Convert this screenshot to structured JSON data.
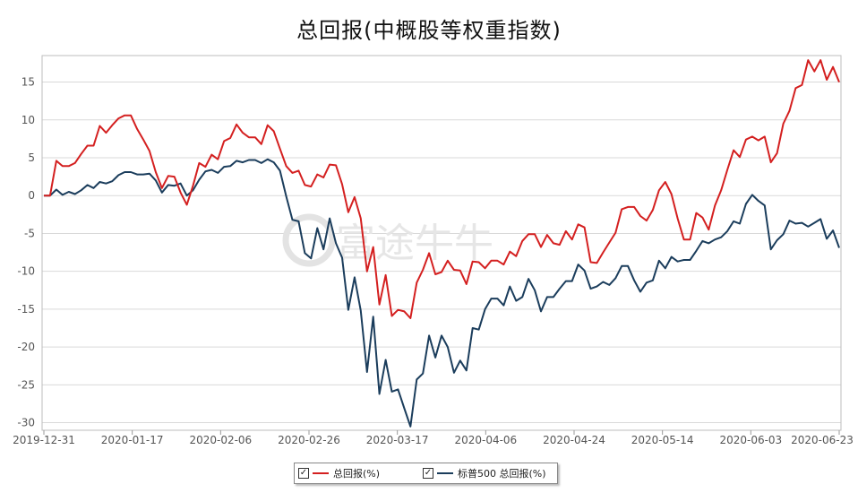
{
  "chart_data": {
    "type": "line",
    "title": "总回报(中概股等权重指数)",
    "xlabel": "",
    "ylabel": "",
    "ylim": [
      -31,
      18.5
    ],
    "yticks": [
      15,
      10,
      5,
      0,
      -5,
      -10,
      -15,
      -20,
      -25,
      -30
    ],
    "xticks": [
      "2019-12-31",
      "2020-01-17",
      "2020-02-06",
      "2020-02-26",
      "2020-03-17",
      "2020-04-06",
      "2020-04-24",
      "2020-05-14",
      "2020-06-03",
      "2020-06-23"
    ],
    "watermark": "富途牛牛",
    "grid": true,
    "legend_position": "bottom-center",
    "series": [
      {
        "name": "总回报(%)",
        "color": "#d42020",
        "values": [
          0,
          0,
          4.6,
          3.9,
          3.9,
          4.3,
          5.5,
          6.6,
          6.6,
          9.2,
          8.3,
          9.3,
          10.2,
          10.6,
          10.6,
          8.8,
          7.4,
          5.9,
          3.1,
          1.0,
          2.6,
          2.5,
          0.4,
          -1.2,
          1.3,
          4.3,
          3.8,
          5.4,
          4.8,
          7.2,
          7.6,
          9.4,
          8.3,
          7.7,
          7.7,
          6.8,
          9.3,
          8.5,
          6.2,
          3.9,
          3.0,
          3.3,
          1.4,
          1.2,
          2.8,
          2.4,
          4.1,
          4.0,
          1.5,
          -2.2,
          -0.2,
          -3.0,
          -10.0,
          -6.8,
          -14.4,
          -10.5,
          -15.9,
          -15.1,
          -15.3,
          -16.2,
          -11.5,
          -9.8,
          -7.6,
          -10.4,
          -10.1,
          -8.6,
          -9.8,
          -9.9,
          -11.7,
          -8.7,
          -8.8,
          -9.6,
          -8.6,
          -8.6,
          -9.1,
          -7.4,
          -8.0,
          -6.0,
          -5.1,
          -5.1,
          -6.8,
          -5.2,
          -6.3,
          -6.5,
          -4.7,
          -5.8,
          -3.8,
          -4.2,
          -8.8,
          -8.9,
          -7.5,
          -6.2,
          -4.9,
          -1.8,
          -1.5,
          -1.5,
          -2.7,
          -3.3,
          -1.9,
          0.7,
          1.8,
          0.2,
          -3.0,
          -5.8,
          -5.8,
          -2.3,
          -2.9,
          -4.5,
          -1.3,
          0.7,
          3.4,
          6.0,
          5.1,
          7.4,
          7.8,
          7.3,
          7.8,
          4.4,
          5.6,
          9.5,
          11.2,
          14.2,
          14.6,
          17.9,
          16.4,
          17.9,
          15.3,
          17.0,
          15.0
        ]
      },
      {
        "name": "标普500 总回报(%)",
        "color": "#1b3d5c",
        "values": [
          0,
          0,
          0.8,
          0.1,
          0.5,
          0.2,
          0.7,
          1.4,
          1.0,
          1.8,
          1.6,
          1.9,
          2.7,
          3.1,
          3.1,
          2.8,
          2.8,
          2.9,
          2.0,
          0.4,
          1.4,
          1.3,
          1.6,
          0.0,
          0.7,
          2.1,
          3.2,
          3.4,
          3.0,
          3.8,
          3.9,
          4.6,
          4.4,
          4.7,
          4.7,
          4.3,
          4.8,
          4.4,
          3.3,
          -0.1,
          -3.2,
          -3.4,
          -7.6,
          -8.3,
          -4.3,
          -7.1,
          -3.0,
          -6.3,
          -8.2,
          -15.1,
          -10.8,
          -15.2,
          -23.3,
          -16.0,
          -26.2,
          -21.7,
          -25.9,
          -25.6,
          -28.1,
          -30.5,
          -24.3,
          -23.5,
          -18.5,
          -21.4,
          -18.5,
          -20.0,
          -23.4,
          -21.8,
          -23.1,
          -17.5,
          -17.7,
          -15.0,
          -13.6,
          -13.6,
          -14.5,
          -12.0,
          -13.9,
          -13.4,
          -11.0,
          -12.5,
          -15.3,
          -13.4,
          -13.4,
          -12.3,
          -11.3,
          -11.3,
          -9.1,
          -9.9,
          -12.3,
          -12.0,
          -11.4,
          -11.8,
          -10.9,
          -9.3,
          -9.3,
          -11.2,
          -12.7,
          -11.5,
          -11.2,
          -8.6,
          -9.6,
          -8.1,
          -8.7,
          -8.5,
          -8.5,
          -7.3,
          -6.0,
          -6.3,
          -5.8,
          -5.5,
          -4.7,
          -3.4,
          -3.7,
          -1.1,
          0.1,
          -0.7,
          -1.3,
          -7.1,
          -5.9,
          -5.1,
          -3.3,
          -3.7,
          -3.6,
          -4.1,
          -3.6,
          -3.1,
          -5.7,
          -4.6,
          -6.9
        ]
      }
    ]
  }
}
